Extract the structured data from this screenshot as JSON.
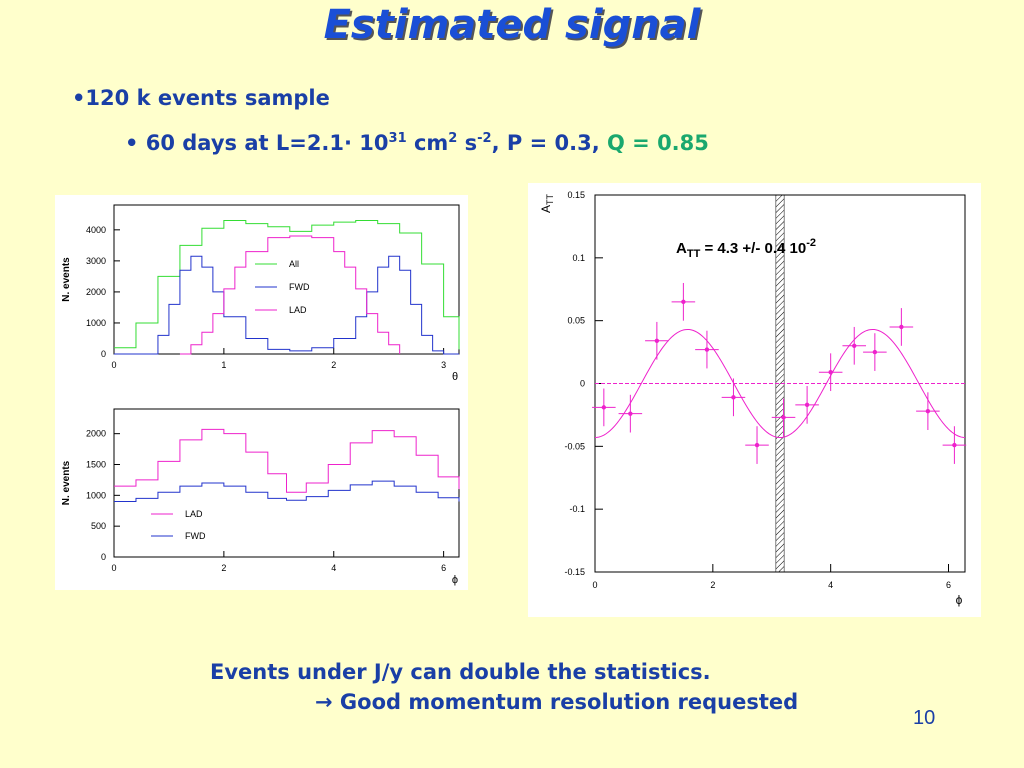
{
  "slide": {
    "title": "Estimated signal",
    "bullet1": "•120 k events sample",
    "bullet2_prefix": "• 60 days at L=2.1· 10",
    "bullet2_exp1": "31",
    "bullet2_mid1": " cm",
    "bullet2_exp2": "2",
    "bullet2_mid2": " s",
    "bullet2_exp3": "-2",
    "bullet2_mid3": ", P = 0.3, ",
    "bullet2_q": "Q = 0.85",
    "footer1": "Events under J/y can double the statistics.",
    "footer2_arrow": "→",
    "footer2": " Good momentum resolution requested",
    "page_number": "10"
  },
  "colors": {
    "all": "#33dd33",
    "fwd": "#2233cc",
    "lad": "#ee22cc",
    "title": "#1a4fd6",
    "q": "#1aa86e"
  },
  "chart_data": [
    {
      "type": "line",
      "ylabel": "N. events",
      "xlabel": "θ",
      "xlim": [
        0,
        3.14
      ],
      "ylim": [
        0,
        4800
      ],
      "xticks": [
        0,
        1,
        2,
        3
      ],
      "yticks": [
        0,
        1000,
        2000,
        3000,
        4000
      ],
      "legend_position": "center-right",
      "series": [
        {
          "name": "All",
          "color": "#33dd33",
          "x": [
            0,
            0.2,
            0.4,
            0.6,
            0.8,
            1.0,
            1.2,
            1.4,
            1.6,
            1.8,
            2.0,
            2.2,
            2.4,
            2.6,
            2.8,
            3.0,
            3.14
          ],
          "y": [
            200,
            1000,
            2500,
            3500,
            4050,
            4300,
            4200,
            4100,
            3950,
            4150,
            4250,
            4300,
            4200,
            3900,
            2900,
            1200,
            150
          ]
        },
        {
          "name": "FWD",
          "color": "#2233cc",
          "x": [
            0,
            0.3,
            0.4,
            0.5,
            0.6,
            0.7,
            0.8,
            0.9,
            1.0,
            1.2,
            1.4,
            1.6,
            1.8,
            2.0,
            2.2,
            2.3,
            2.4,
            2.5,
            2.6,
            2.7,
            2.8,
            2.9,
            3.0,
            3.14
          ],
          "y": [
            0,
            0,
            600,
            1600,
            2700,
            3150,
            2800,
            2000,
            1200,
            500,
            150,
            100,
            200,
            500,
            1200,
            2000,
            2800,
            3150,
            2700,
            1600,
            600,
            100,
            0,
            0
          ]
        },
        {
          "name": "LAD",
          "color": "#ee22cc",
          "x": [
            0.6,
            0.7,
            0.8,
            0.9,
            1.0,
            1.1,
            1.2,
            1.4,
            1.6,
            1.8,
            2.0,
            2.1,
            2.2,
            2.3,
            2.4,
            2.5,
            2.6
          ],
          "y": [
            0,
            300,
            700,
            1300,
            2100,
            2800,
            3300,
            3750,
            3800,
            3750,
            3300,
            2800,
            2100,
            1300,
            700,
            300,
            0
          ]
        }
      ]
    },
    {
      "type": "line",
      "ylabel": "N. events",
      "xlabel": "ϕ",
      "xlim": [
        0,
        6.28
      ],
      "ylim": [
        0,
        2400
      ],
      "xticks": [
        0,
        2,
        4,
        6
      ],
      "yticks": [
        0,
        500,
        1000,
        1500,
        2000
      ],
      "legend_position": "bottom-left",
      "series": [
        {
          "name": "LAD",
          "color": "#ee22cc",
          "x": [
            0,
            0.4,
            0.8,
            1.2,
            1.6,
            2.0,
            2.4,
            2.8,
            3.14,
            3.5,
            3.9,
            4.3,
            4.7,
            5.1,
            5.5,
            5.9,
            6.28
          ],
          "y": [
            1150,
            1250,
            1550,
            1900,
            2070,
            2000,
            1700,
            1350,
            1050,
            1200,
            1500,
            1850,
            2050,
            1950,
            1650,
            1300,
            1100
          ]
        },
        {
          "name": "FWD",
          "color": "#2233cc",
          "x": [
            0,
            0.4,
            0.8,
            1.2,
            1.6,
            2.0,
            2.4,
            2.8,
            3.14,
            3.5,
            3.9,
            4.3,
            4.7,
            5.1,
            5.5,
            5.9,
            6.28
          ],
          "y": [
            900,
            950,
            1050,
            1150,
            1200,
            1150,
            1050,
            950,
            920,
            980,
            1080,
            1170,
            1230,
            1150,
            1050,
            960,
            900
          ]
        }
      ]
    },
    {
      "type": "scatter",
      "ylabel": "A_TT",
      "xlabel": "ϕ",
      "xlim": [
        0,
        6.28
      ],
      "ylim": [
        -0.15,
        0.15
      ],
      "xticks": [
        0,
        2,
        4,
        6
      ],
      "yticks": [
        -0.15,
        -0.1,
        -0.05,
        0,
        0.05,
        0.1,
        0.15
      ],
      "ytick_labels": [
        "-0.15",
        "-0.1",
        "-0.05",
        "0",
        "0.05",
        "0.1",
        "0.15"
      ],
      "annotation_main": "A",
      "annotation_sub": "TT",
      "annotation_rest": " = 4.3 +/- 0.4 10",
      "annotation_sup": "-2",
      "excluded_band_x": [
        3.07,
        3.21
      ],
      "points": [
        {
          "x": 0.15,
          "y": -0.019
        },
        {
          "x": 0.6,
          "y": -0.024
        },
        {
          "x": 1.05,
          "y": 0.034
        },
        {
          "x": 1.5,
          "y": 0.065
        },
        {
          "x": 1.9,
          "y": 0.027
        },
        {
          "x": 2.35,
          "y": -0.011
        },
        {
          "x": 2.75,
          "y": -0.049
        },
        {
          "x": 3.2,
          "y": -0.027
        },
        {
          "x": 3.6,
          "y": -0.017
        },
        {
          "x": 4.0,
          "y": 0.009
        },
        {
          "x": 4.4,
          "y": 0.03
        },
        {
          "x": 4.75,
          "y": 0.025
        },
        {
          "x": 5.2,
          "y": 0.045
        },
        {
          "x": 5.65,
          "y": -0.022
        },
        {
          "x": 6.1,
          "y": -0.049
        }
      ],
      "x_err": 0.2,
      "y_err": 0.015,
      "fit": {
        "amplitude": 0.043,
        "function": "-A*cos(2*phi)"
      }
    }
  ]
}
